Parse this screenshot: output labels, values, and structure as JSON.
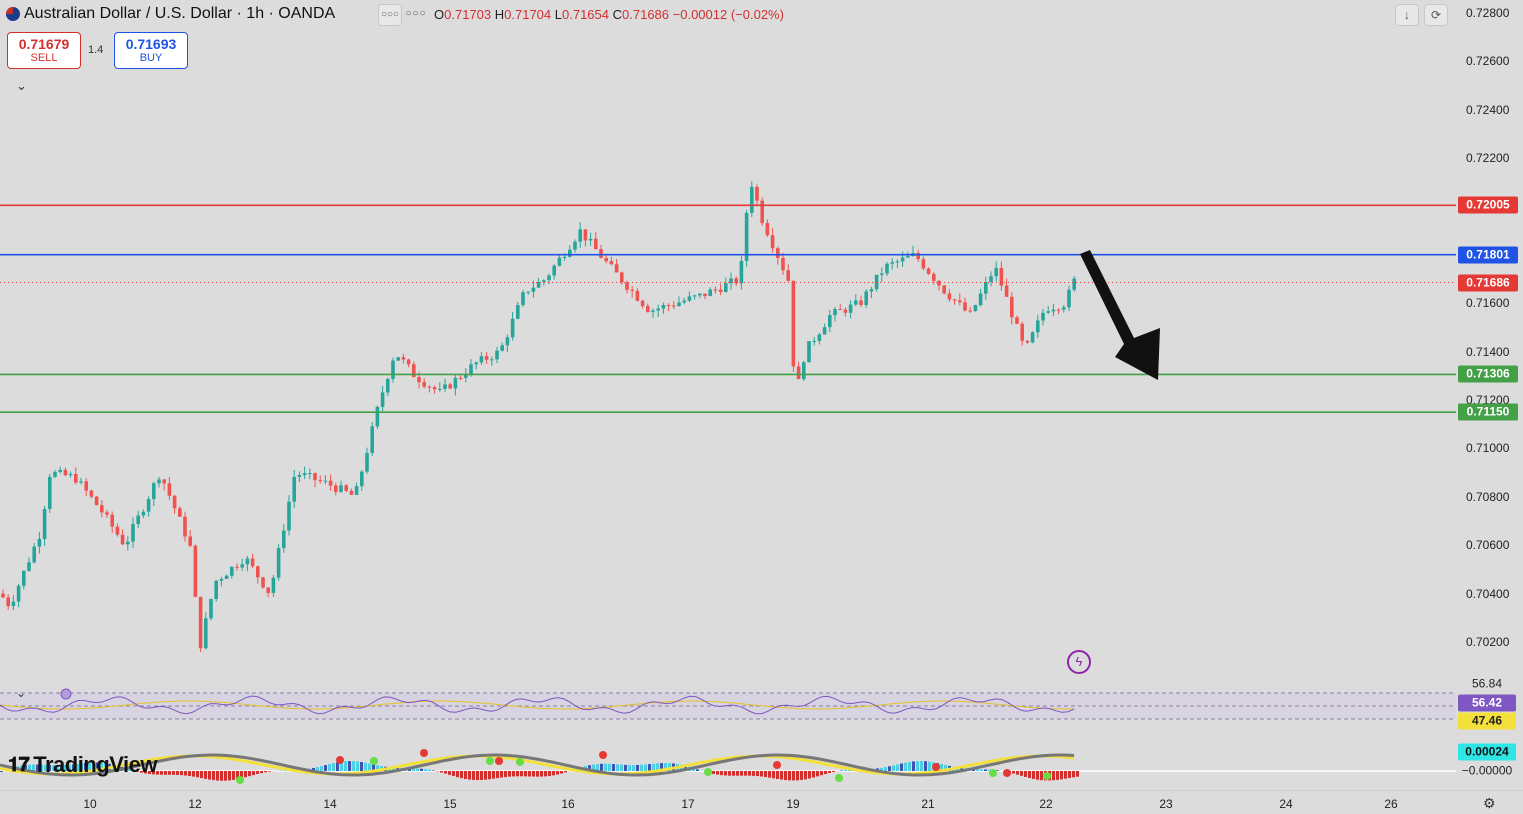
{
  "header": {
    "title": "Australian Dollar / U.S. Dollar · 1h · OANDA",
    "more_label": "○○○",
    "ohlc": {
      "o_key": "O",
      "o_val": "0.71703",
      "h_key": "H",
      "h_val": "0.71704",
      "l_key": "L",
      "l_val": "0.71654",
      "c_key": "C",
      "c_val": "0.71686",
      "change": "−0.00012 (−0.02%)"
    }
  },
  "trade": {
    "sell_price": "0.71679",
    "sell_label": "SELL",
    "spread": "1.4",
    "buy_price": "0.71693",
    "buy_label": "BUY"
  },
  "logo_text": "TradingView",
  "yaxis": {
    "ticks": [
      "0.72800",
      "0.72600",
      "0.72400",
      "0.72200",
      "0.71600",
      "0.71400",
      "0.71200",
      "0.71000",
      "0.70800",
      "0.70600",
      "0.70400",
      "0.70200"
    ],
    "tick_values": [
      0.728,
      0.726,
      0.724,
      0.722,
      0.716,
      0.714,
      0.712,
      0.71,
      0.708,
      0.706,
      0.704,
      0.702
    ]
  },
  "levels": [
    {
      "value": 0.72005,
      "label": "0.72005",
      "color": "#e53935"
    },
    {
      "value": 0.71801,
      "label": "0.71801",
      "color": "#1e53e5"
    },
    {
      "value": 0.71686,
      "label": "0.71686",
      "color": "#e53935"
    },
    {
      "value": 0.71306,
      "label": "0.71306",
      "color": "#43a047"
    },
    {
      "value": 0.7115,
      "label": "0.71150",
      "color": "#43a047"
    }
  ],
  "xaxis": {
    "labels": [
      "10",
      "12",
      "14",
      "15",
      "16",
      "17",
      "19",
      "21",
      "22",
      "23",
      "24",
      "26"
    ]
  },
  "rsi": {
    "upper": "56.84",
    "value": "56.42",
    "lower": "47.46"
  },
  "macd": {
    "value": "0.00024",
    "zero": "−0.00000"
  },
  "colors": {
    "up": "#26a69a",
    "down": "#ef5350",
    "rsi_line": "#7e57c2",
    "rsi_ma": "#e6c229"
  }
}
